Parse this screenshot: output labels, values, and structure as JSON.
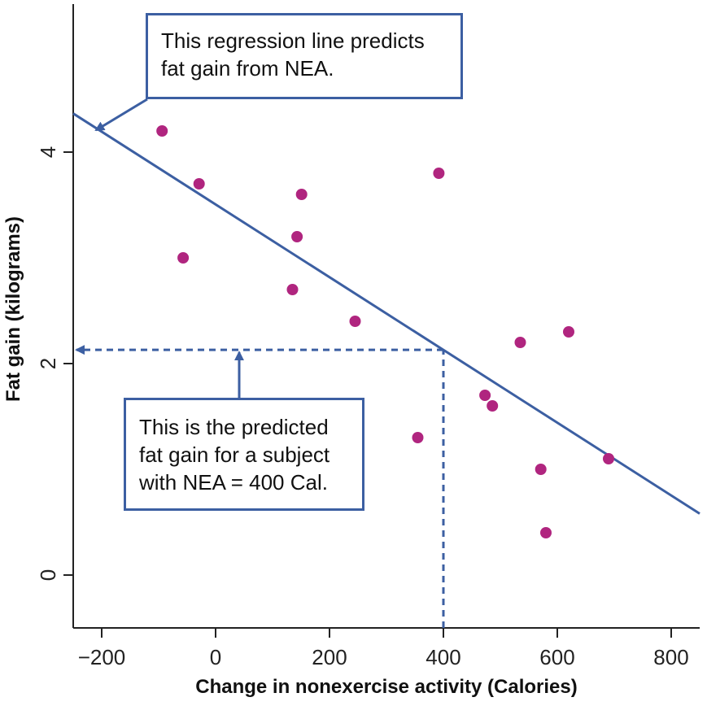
{
  "chart_data": {
    "type": "scatter",
    "title": "",
    "xlabel": "Change in nonexercise activity (Calories)",
    "ylabel": "Fat gain (kilograms)",
    "xlim": [
      -250,
      850
    ],
    "ylim": [
      -0.5,
      5.4
    ],
    "xticks": [
      -200,
      0,
      200,
      400,
      600,
      800
    ],
    "xtick_labels": [
      "−200",
      "0",
      "200",
      "400",
      "600",
      "800"
    ],
    "yticks": [
      0,
      2,
      4
    ],
    "ytick_labels": [
      "0",
      "2",
      "4"
    ],
    "grid": false,
    "legend": "none",
    "points": [
      {
        "x": -94,
        "y": 4.2
      },
      {
        "x": -57,
        "y": 3.0
      },
      {
        "x": -29,
        "y": 3.7
      },
      {
        "x": 135,
        "y": 2.7
      },
      {
        "x": 143,
        "y": 3.2
      },
      {
        "x": 151,
        "y": 3.6
      },
      {
        "x": 245,
        "y": 2.4
      },
      {
        "x": 355,
        "y": 1.3
      },
      {
        "x": 392,
        "y": 3.8
      },
      {
        "x": 473,
        "y": 1.7
      },
      {
        "x": 486,
        "y": 1.6
      },
      {
        "x": 535,
        "y": 2.2
      },
      {
        "x": 571,
        "y": 1.0
      },
      {
        "x": 580,
        "y": 0.4
      },
      {
        "x": 620,
        "y": 2.3
      },
      {
        "x": 690,
        "y": 1.1
      }
    ],
    "regression_line": {
      "intercept": 3.505,
      "slope": -0.00344
    },
    "prediction": {
      "x": 400,
      "y": 2.13
    },
    "colors": {
      "points": "#b0257f",
      "line": "#3c5fa2",
      "axes": "#222222"
    }
  },
  "annotations": {
    "line_callout": [
      "This regression line predicts",
      "fat gain from NEA."
    ],
    "prediction_callout": [
      "This is the predicted",
      "fat gain for a subject",
      "with NEA = 400 Cal."
    ]
  }
}
